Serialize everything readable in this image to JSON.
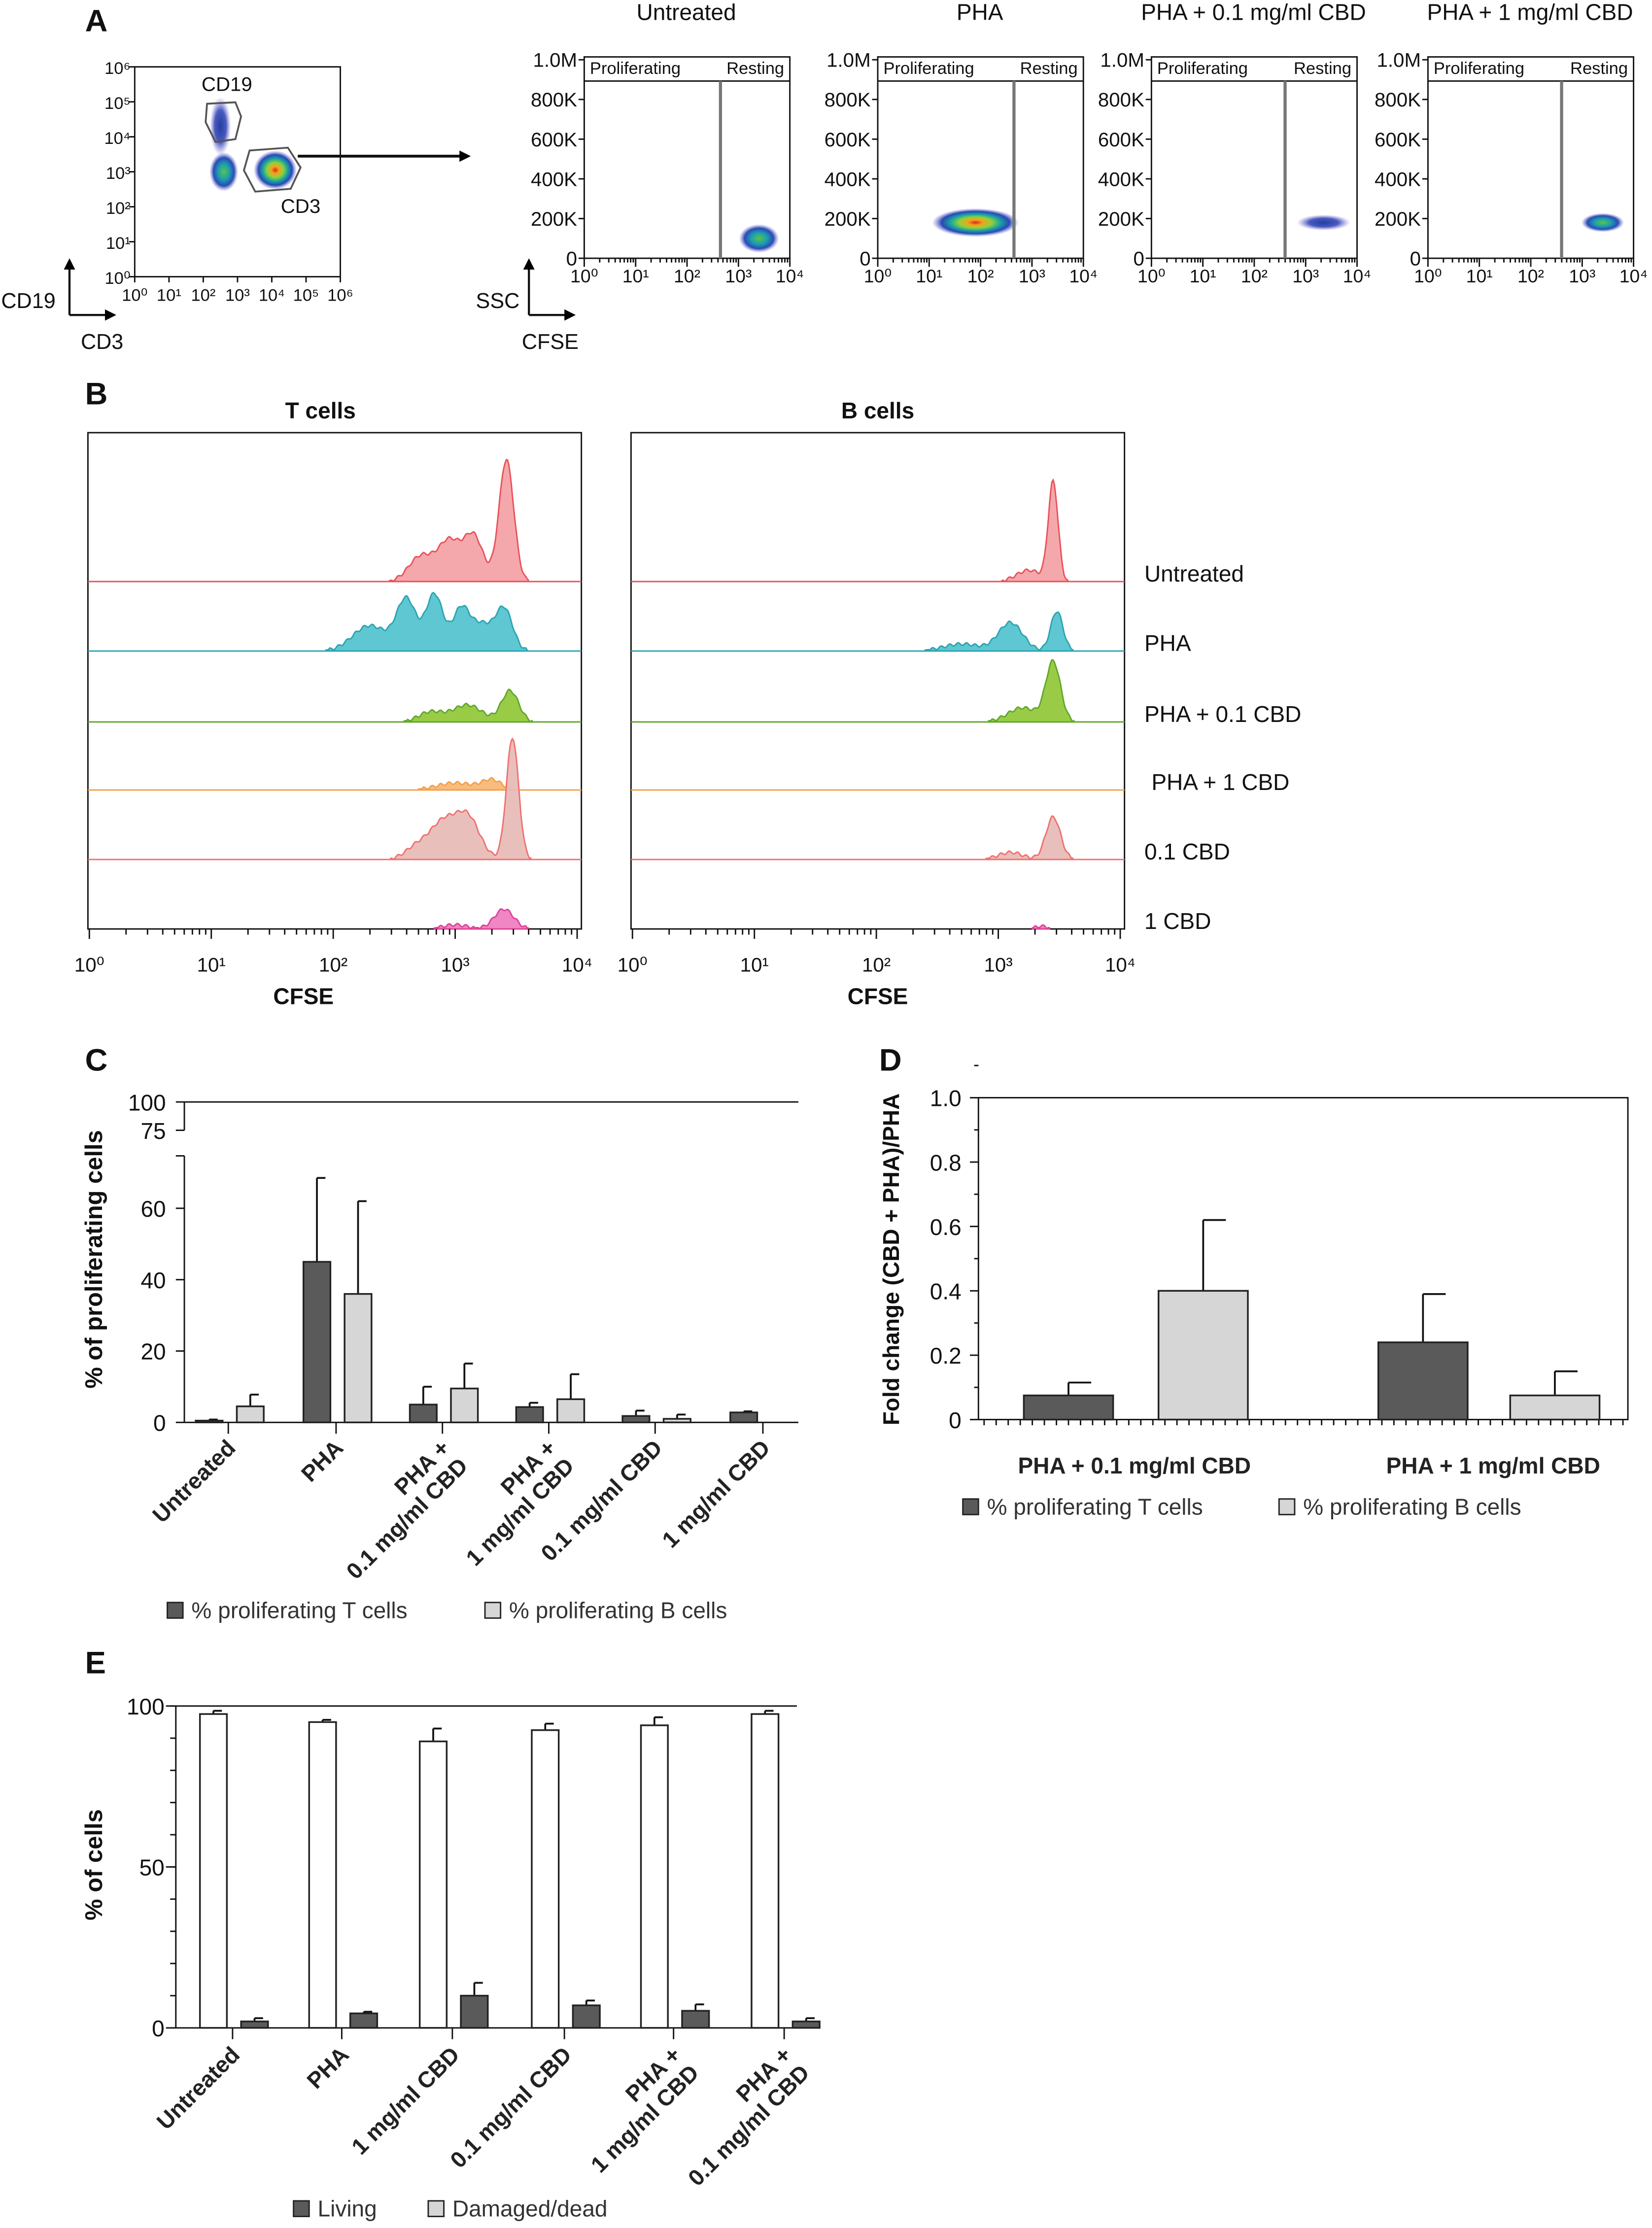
{
  "panel_labels": {
    "A": "A",
    "B": "B",
    "C": "C",
    "D": "D",
    "E": "E"
  },
  "chart_data": [
    {
      "type": "scatter",
      "panel": "A",
      "xlabel": "CD3",
      "ylabel": "CD19",
      "x_ticks": [
        "10⁰",
        "10¹",
        "10²",
        "10³",
        "10⁴",
        "10⁵",
        "10⁶"
      ],
      "y_ticks": [
        "10⁰",
        "10¹",
        "10²",
        "10³",
        "10⁴",
        "10⁵",
        "10⁶"
      ],
      "xlim_log10": [
        0,
        6
      ],
      "ylim_log10": [
        0,
        6
      ],
      "gate_labels": {
        "cd19": "CD19",
        "cd3": "CD3"
      },
      "populations": [
        {
          "cd3_log10": 2.5,
          "cd19_log10": 4.3,
          "spread_x": 0.22,
          "spread_y": 0.6,
          "density": "cool"
        },
        {
          "cd3_log10": 2.6,
          "cd19_log10": 3.0,
          "spread_x": 0.3,
          "spread_y": 0.4,
          "density": "mid"
        },
        {
          "cd3_log10": 4.1,
          "cd19_log10": 3.05,
          "spread_x": 0.45,
          "spread_y": 0.4,
          "density": "hot"
        }
      ]
    },
    {
      "type": "scatter",
      "panel": "A",
      "xlabel": "CFSE",
      "ylabel": "SSC",
      "region_labels": [
        "Proliferating",
        "Resting"
      ],
      "y_ticks": [
        "0",
        "200K",
        "400K",
        "600K",
        "800K",
        "1.0M"
      ],
      "y_tick_values": [
        0,
        200000,
        400000,
        600000,
        800000,
        1000000
      ],
      "x_ticks": [
        "10⁰",
        "10¹",
        "10²",
        "10³",
        "10⁴"
      ],
      "xlim_log10": [
        0,
        4
      ],
      "ylim": [
        0,
        1000000
      ],
      "plots": [
        {
          "title": "Untreated",
          "gate_cfse_log10": 2.65,
          "cfse_log10": 3.4,
          "ssc": 100000,
          "spread_x": 0.3,
          "spread_y": 45000,
          "density": "mid"
        },
        {
          "title": "PHA",
          "gate_cfse_log10": 2.65,
          "cfse_log10": 1.9,
          "ssc": 180000,
          "spread_x": 0.65,
          "spread_y": 45000,
          "density": "hot"
        },
        {
          "title": "PHA + 0.1 mg/ml CBD",
          "gate_cfse_log10": 2.6,
          "cfse_log10": 3.35,
          "ssc": 180000,
          "spread_x": 0.4,
          "spread_y": 25000,
          "density": "cool"
        },
        {
          "title": "PHA + 1 mg/ml CBD",
          "gate_cfse_log10": 2.6,
          "cfse_log10": 3.4,
          "ssc": 180000,
          "spread_x": 0.32,
          "spread_y": 30000,
          "density": "mid"
        }
      ]
    },
    {
      "type": "area",
      "panel": "B",
      "xlabel": "CFSE",
      "x_ticks": [
        "10⁰",
        "10¹",
        "10²",
        "10³",
        "10⁴"
      ],
      "xlim_log10": [
        0,
        4
      ],
      "x_scale": "log",
      "panels": [
        {
          "title": "T cells",
          "rows": [
            [
              [
                3.42,
                0.86,
                0.06
              ],
              [
                3.15,
                0.32,
                0.08
              ],
              [
                2.95,
                0.28,
                0.09
              ],
              [
                2.72,
                0.18,
                0.1
              ]
            ],
            [
              [
                2.6,
                0.36,
                0.08
              ],
              [
                2.83,
                0.4,
                0.07
              ],
              [
                3.05,
                0.3,
                0.07
              ],
              [
                3.4,
                0.3,
                0.07
              ],
              [
                2.3,
                0.18,
                0.14
              ],
              [
                3.22,
                0.18,
                0.08
              ]
            ],
            [
              [
                3.45,
                0.22,
                0.07
              ],
              [
                3.1,
                0.12,
                0.12
              ],
              [
                2.8,
                0.07,
                0.1
              ]
            ],
            [
              [
                3.0,
                0.05,
                0.15
              ],
              [
                3.3,
                0.07,
                0.08
              ]
            ],
            [
              [
                3.47,
                0.86,
                0.05
              ],
              [
                3.1,
                0.3,
                0.1
              ],
              [
                2.9,
                0.24,
                0.1
              ],
              [
                2.7,
                0.1,
                0.1
              ]
            ],
            [
              [
                3.4,
                0.14,
                0.08
              ],
              [
                3.0,
                0.03,
                0.1
              ]
            ]
          ]
        },
        {
          "title": "B cells",
          "rows": [
            [
              [
                3.45,
                0.7,
                0.04
              ],
              [
                3.25,
                0.08,
                0.1
              ]
            ],
            [
              [
                3.48,
                0.28,
                0.05
              ],
              [
                3.1,
                0.2,
                0.1
              ],
              [
                2.7,
                0.05,
                0.15
              ]
            ],
            [
              [
                3.45,
                0.42,
                0.06
              ],
              [
                3.2,
                0.1,
                0.12
              ]
            ],
            [],
            [
              [
                3.45,
                0.3,
                0.06
              ],
              [
                3.1,
                0.05,
                0.1
              ]
            ],
            [
              [
                3.35,
                0.02,
                0.05
              ]
            ]
          ]
        }
      ],
      "series": [
        {
          "name": "Untreated",
          "fill": "#f4a3a6",
          "stroke": "#e9505a"
        },
        {
          "name": "PHA",
          "fill": "#55c4cf",
          "stroke": "#2aa5b3"
        },
        {
          "name": "PHA + 0.1 CBD",
          "fill": "#95c83d",
          "stroke": "#5ea82a"
        },
        {
          "name": "PHA + 1 CBD",
          "fill": "#f8b878",
          "stroke": "#f3a04a"
        },
        {
          "name": "0.1 CBD",
          "fill": "#e8bcb7",
          "stroke": "#f07070"
        },
        {
          "name": "1 CBD",
          "fill": "#ef80c0",
          "stroke": "#e0409a"
        }
      ]
    },
    {
      "type": "bar",
      "panel": "C",
      "ylabel": "% of proliferating cells",
      "y_ticks": [
        "0",
        "20",
        "40",
        "60",
        "75",
        "100"
      ],
      "y_tick_values": [
        0,
        20,
        40,
        60,
        75,
        100
      ],
      "y_axis_break": [
        74,
        75
      ],
      "ylim": [
        0,
        100
      ],
      "categories": [
        [
          "Untreated"
        ],
        [
          "PHA"
        ],
        [
          "PHA +",
          "0.1 mg/ml CBD"
        ],
        [
          "PHA +",
          "1 mg/ml CBD"
        ],
        [
          "0.1 mg/ml CBD"
        ],
        [
          "1 mg/ml CBD"
        ]
      ],
      "series": [
        {
          "name": "% proliferating T cells",
          "color": "#5a5a5a",
          "values": [
            0.5,
            45,
            5,
            4.3,
            1.8,
            2.8
          ],
          "errors": [
            0.3,
            23.5,
            5,
            1.2,
            1.5,
            0.3
          ]
        },
        {
          "name": "% proliferating B cells",
          "color": "#d6d6d6",
          "values": [
            4.5,
            36,
            9.5,
            6.5,
            1,
            null
          ],
          "errors": [
            3.3,
            26,
            7,
            7,
            1.2,
            null
          ]
        }
      ],
      "legend": "bottom"
    },
    {
      "type": "bar",
      "panel": "D",
      "ylabel": "Fold change (CBD + PHA)/PHA",
      "y_ticks": [
        "0",
        "0.2",
        "0.4",
        "0.6",
        "0.8",
        "1.0"
      ],
      "y_tick_values": [
        0,
        0.2,
        0.4,
        0.6,
        0.8,
        1.0
      ],
      "ylim": [
        0,
        1.0
      ],
      "categories": [
        "PHA + 0.1 mg/ml CBD",
        "PHA + 1 mg/ml CBD"
      ],
      "series": [
        {
          "name": "% proliferating T cells",
          "color": "#5a5a5a",
          "values": [
            0.075,
            0.24
          ],
          "errors": [
            0.04,
            0.15
          ]
        },
        {
          "name": "% proliferating B cells",
          "color": "#d6d6d6",
          "values": [
            0.4,
            0.075
          ],
          "errors": [
            0.22,
            0.075
          ]
        }
      ],
      "legend": "bottom"
    },
    {
      "type": "bar",
      "panel": "E",
      "ylabel": "% of cells",
      "y_ticks": [
        "0",
        "50",
        "100"
      ],
      "y_tick_values": [
        0,
        50,
        100
      ],
      "ylim": [
        0,
        100
      ],
      "categories": [
        [
          "Untreated"
        ],
        [
          "PHA"
        ],
        [
          "1 mg/ml CBD"
        ],
        [
          "0.1 mg/ml CBD"
        ],
        [
          "PHA +",
          "1 mg/ml CBD"
        ],
        [
          "PHA +",
          "0.1 mg/ml CBD"
        ]
      ],
      "series": [
        {
          "name": "Living",
          "legend_color": "#5a5a5a",
          "color": "#ffffff",
          "values": [
            97.5,
            95,
            89,
            92.5,
            94,
            97.5
          ],
          "errors": [
            1,
            0.7,
            4,
            2,
            2.5,
            1
          ]
        },
        {
          "name": "Damaged/dead",
          "legend_color": "#d6d6d6",
          "color": "#5a5a5a",
          "values": [
            2,
            4.5,
            10,
            7,
            5.3,
            2
          ],
          "errors": [
            1,
            0.5,
            4,
            1.5,
            2,
            1
          ]
        }
      ],
      "legend": "bottom"
    }
  ]
}
